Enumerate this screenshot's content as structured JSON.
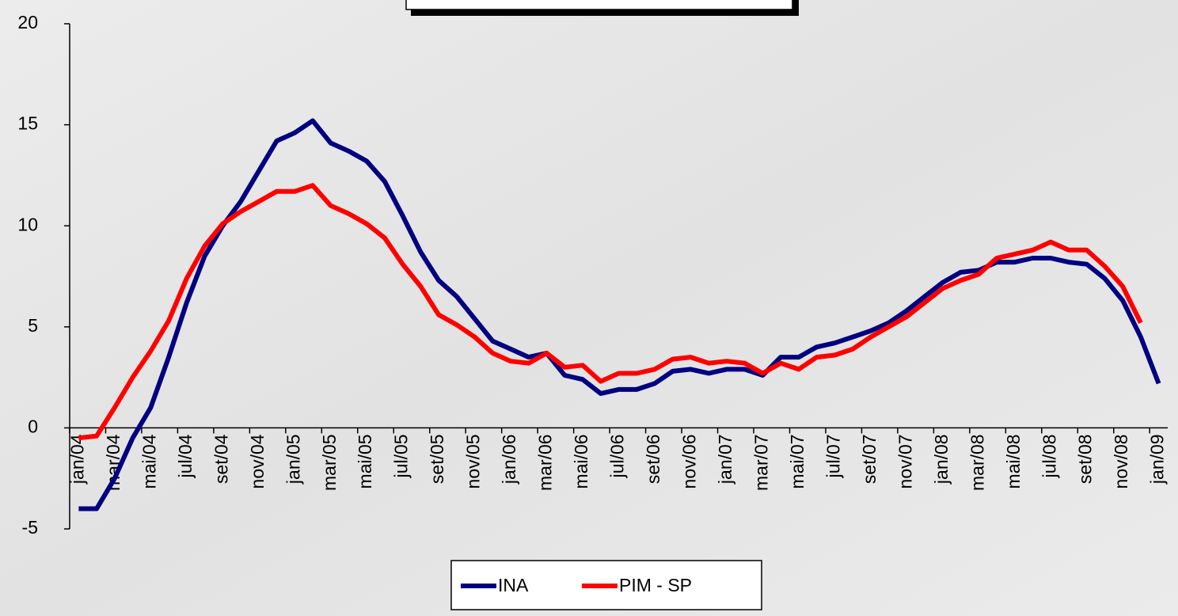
{
  "chart_data": {
    "type": "line",
    "categories": [
      "jan/04",
      null,
      "mar/04",
      null,
      "mai/04",
      null,
      "jul/04",
      null,
      "set/04",
      null,
      "nov/04",
      null,
      "jan/05",
      null,
      "mar/05",
      null,
      "mai/05",
      null,
      "jul/05",
      null,
      "set/05",
      null,
      "nov/05",
      null,
      "jan/06",
      null,
      "mar/06",
      null,
      "mai/06",
      null,
      "jul/06",
      null,
      "set/06",
      null,
      "nov/06",
      null,
      "jan/07",
      null,
      "mar/07",
      null,
      "mai/07",
      null,
      "jul/07",
      null,
      "set/07",
      null,
      "nov/07",
      null,
      "jan/08",
      null,
      "mar/08",
      null,
      "mai/08",
      null,
      "jul/08",
      null,
      "set/08",
      null,
      "nov/08",
      null,
      "jan/09"
    ],
    "series": [
      {
        "name": "INA",
        "color": "#000080",
        "values": [
          -4,
          -4,
          -2.5,
          -0.5,
          1,
          3.5,
          6.2,
          8.5,
          10,
          11.2,
          12.7,
          14.2,
          14.6,
          15.2,
          14.1,
          13.7,
          13.2,
          12.2,
          10.5,
          8.7,
          7.3,
          6.5,
          5.4,
          4.3,
          3.9,
          3.5,
          3.7,
          2.6,
          2.4,
          1.7,
          1.9,
          1.9,
          2.2,
          2.8,
          2.9,
          2.7,
          2.9,
          2.9,
          2.6,
          3.5,
          3.5,
          4.0,
          4.2,
          4.5,
          4.8,
          5.2,
          5.8,
          6.5,
          7.2,
          7.7,
          7.8,
          8.2,
          8.2,
          8.4,
          8.4,
          8.2,
          8.1,
          7.4,
          6.3,
          4.5,
          2.2
        ]
      },
      {
        "name": "PIM - SP",
        "color": "#ff0000",
        "values": [
          -0.5,
          -0.4,
          1,
          2.5,
          3.8,
          5.3,
          7.4,
          9,
          10.1,
          10.7,
          11.2,
          11.7,
          11.7,
          12,
          11,
          10.6,
          10.1,
          9.4,
          8.1,
          7,
          5.6,
          5.1,
          4.5,
          3.7,
          3.3,
          3.2,
          3.7,
          3,
          3.1,
          2.3,
          2.7,
          2.7,
          2.9,
          3.4,
          3.5,
          3.2,
          3.3,
          3.2,
          2.7,
          3.2,
          2.9,
          3.5,
          3.6,
          3.9,
          4.5,
          5,
          5.5,
          6.2,
          6.9,
          7.3,
          7.6,
          8.4,
          8.6,
          8.8,
          9.2,
          8.8,
          8.8,
          8,
          7,
          5.2,
          null
        ]
      }
    ],
    "ylim": [
      -5,
      20
    ],
    "yticks": [
      -5,
      0,
      5,
      10,
      15,
      20
    ],
    "grid": false,
    "legend": "bottom"
  }
}
